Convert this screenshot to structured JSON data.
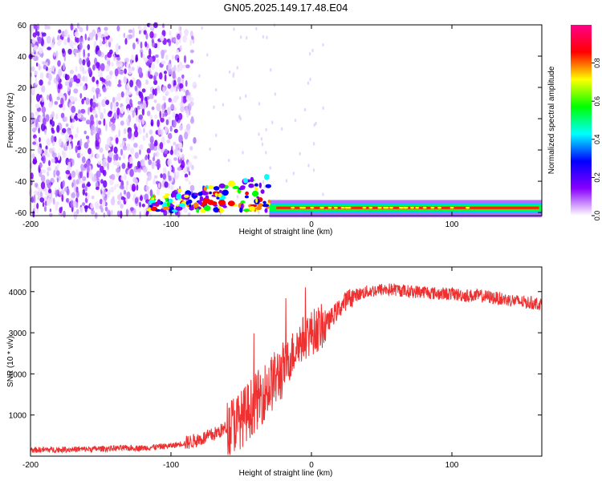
{
  "title": "GN05.2025.149.17.48.E04",
  "colors": {
    "snr_line": "#ee3030",
    "frame": "#000000",
    "spectrogram_background": "#ffffff"
  },
  "chart_data": [
    {
      "type": "heatmap",
      "xlabel": "Height of straight line (km)",
      "ylabel": "Frequency (Hz)",
      "xlim": [
        -200,
        164
      ],
      "ylim": [
        -62,
        60
      ],
      "x_ticks": [
        -200,
        -100,
        0,
        100
      ],
      "x_tick_labels": [
        "-200",
        "-100",
        "0",
        "100"
      ],
      "y_ticks": [
        -60,
        -40,
        -20,
        0,
        20,
        40,
        60
      ],
      "y_tick_labels": [
        "-60",
        "-40",
        "-20",
        "0",
        "20",
        "40",
        "60"
      ],
      "colorbar": {
        "label": "Normalized spectral amplitude",
        "range": [
          0,
          1
        ],
        "ticks": [
          0.0,
          0.2,
          0.4,
          0.6,
          0.8
        ],
        "tick_labels": [
          "0.0",
          "0.2",
          "0.4",
          "0.6",
          "0.8"
        ],
        "colormap": [
          "#ffffff",
          "#8800ff",
          "#0000ff",
          "#00ffff",
          "#00ff00",
          "#ffff00",
          "#ff0000",
          "#ff0088"
        ]
      },
      "features": {
        "noise_region_km": [
          -200,
          -95
        ],
        "noise_fade_to_km": -80,
        "band_center_hz": -57,
        "band_halfwidth_hz": 3,
        "band_turbulent_region_km": [
          -115,
          -30
        ],
        "band_peak_core_km": [
          -30,
          164
        ]
      },
      "grid": false
    },
    {
      "type": "line",
      "xlabel": "Height of straight line (km)",
      "ylabel": "SNR (10 * v/v)",
      "xlim": [
        -200,
        164
      ],
      "ylim": [
        0,
        4600
      ],
      "x_ticks": [
        -200,
        -100,
        0,
        100
      ],
      "x_tick_labels": [
        "-200",
        "-100",
        "0",
        "100"
      ],
      "y_ticks": [
        1000,
        2000,
        3000,
        4000
      ],
      "y_tick_labels": [
        "1000",
        "2000",
        "3000",
        "4000"
      ],
      "series": [
        {
          "color": "#ee3030",
          "x": [
            -200,
            -180,
            -160,
            -140,
            -120,
            -100,
            -90,
            -80,
            -70,
            -60,
            -50,
            -45,
            -40,
            -35,
            -30,
            -25,
            -20,
            -15,
            -10,
            -5,
            0,
            5,
            10,
            15,
            20,
            25,
            30,
            40,
            50,
            60,
            70,
            80,
            90,
            100,
            110,
            120,
            130,
            140,
            150,
            164
          ],
          "y": [
            150,
            160,
            170,
            190,
            200,
            250,
            320,
            400,
            520,
            700,
            900,
            1100,
            1300,
            1500,
            1700,
            1900,
            2100,
            2400,
            2700,
            2900,
            3000,
            3100,
            3200,
            3400,
            3600,
            3800,
            3900,
            4000,
            4050,
            4050,
            4000,
            4000,
            3950,
            3950,
            3900,
            3900,
            3850,
            3800,
            3750,
            3700
          ]
        }
      ],
      "noise_amplitude_note": "high-frequency jitter superimposed, strongest between -60 and 0 km",
      "grid": false
    }
  ]
}
